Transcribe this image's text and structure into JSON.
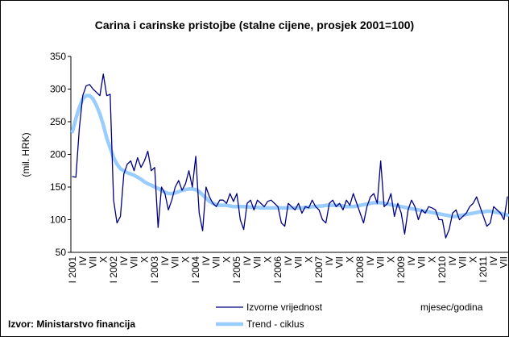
{
  "chart_data": {
    "type": "line",
    "title": "Carina i carinske pristojbe (stalne cijene, prosjek 2001=100)",
    "ylabel": "(mil. HRK)",
    "xlabel": "mjesec/godina",
    "source": "Izvor: Ministarstvo financija",
    "categories": [
      "I 2001",
      null,
      null,
      "IV",
      null,
      null,
      "VII",
      null,
      null,
      "X",
      null,
      null,
      "I 2002",
      null,
      null,
      "IV",
      null,
      null,
      "VII",
      null,
      null,
      "X",
      null,
      null,
      "I 2003",
      null,
      null,
      "IV",
      null,
      null,
      "VII",
      null,
      null,
      "X",
      null,
      null,
      "I 2004",
      null,
      null,
      "IV",
      null,
      null,
      "VII",
      null,
      null,
      "X",
      null,
      null,
      "I 2005",
      null,
      null,
      "IV",
      null,
      null,
      "VII",
      null,
      null,
      "X",
      null,
      null,
      "I 2006",
      null,
      null,
      "IV",
      null,
      null,
      "VII",
      null,
      null,
      "X",
      null,
      null,
      "I 2007",
      null,
      null,
      "IV",
      null,
      null,
      "VII",
      null,
      null,
      "X",
      null,
      null,
      "I 2008",
      null,
      null,
      "IV",
      null,
      null,
      "VII",
      null,
      null,
      "X",
      null,
      null,
      "I 2009",
      null,
      null,
      "IV",
      null,
      null,
      "VII",
      null,
      null,
      "X",
      null,
      null,
      "I 2010",
      null,
      null,
      "IV",
      null,
      null,
      "VII",
      null,
      null,
      "X",
      null,
      null,
      "I 2011",
      null,
      null,
      "IV",
      null,
      null,
      "VII",
      null
    ],
    "series": [
      {
        "name": "Izvorne vrijednost",
        "color": "#000080",
        "width": 1.3,
        "values": [
          166,
          165,
          240,
          290,
          305,
          307,
          300,
          295,
          290,
          323,
          290,
          292,
          130,
          95,
          105,
          170,
          185,
          190,
          175,
          195,
          180,
          190,
          205,
          175,
          180,
          88,
          150,
          140,
          115,
          130,
          150,
          160,
          145,
          155,
          175,
          150,
          197,
          110,
          83,
          150,
          135,
          125,
          120,
          130,
          130,
          125,
          140,
          128,
          140,
          100,
          85,
          125,
          130,
          115,
          130,
          125,
          120,
          128,
          130,
          125,
          120,
          95,
          90,
          125,
          120,
          115,
          125,
          110,
          120,
          118,
          130,
          120,
          115,
          100,
          95,
          125,
          130,
          120,
          125,
          115,
          130,
          122,
          140,
          125,
          110,
          95,
          120,
          135,
          140,
          125,
          190,
          120,
          125,
          140,
          105,
          125,
          110,
          78,
          115,
          130,
          120,
          100,
          115,
          110,
          120,
          118,
          115,
          100,
          100,
          72,
          85,
          110,
          115,
          100,
          105,
          110,
          120,
          125,
          135,
          120,
          105,
          90,
          95,
          120,
          115,
          110,
          100,
          135
        ]
      },
      {
        "name": "Trend - ciklus",
        "color": "#99ccff",
        "width": 4.5,
        "values": [
          235,
          255,
          272,
          285,
          290,
          290,
          285,
          275,
          262,
          245,
          225,
          210,
          195,
          185,
          178,
          175,
          172,
          170,
          168,
          165,
          162,
          158,
          155,
          153,
          150,
          148,
          145,
          142,
          140,
          140,
          141,
          143,
          145,
          146,
          147,
          147,
          146,
          143,
          138,
          133,
          128,
          125,
          123,
          122,
          122,
          122,
          121,
          120,
          120,
          120,
          120,
          120,
          119,
          119,
          119,
          118,
          118,
          118,
          118,
          118,
          118,
          118,
          118,
          118,
          118,
          118,
          118,
          118,
          119,
          119,
          120,
          120,
          121,
          121,
          122,
          122,
          122,
          122,
          122,
          121,
          120,
          120,
          120,
          121,
          122,
          123,
          124,
          125,
          126,
          126,
          126,
          125,
          124,
          123,
          122,
          121,
          120,
          119,
          118,
          117,
          116,
          115,
          114,
          113,
          112,
          111,
          110,
          109,
          108,
          107,
          106,
          105,
          105,
          106,
          107,
          108,
          109,
          110,
          111,
          112,
          112,
          113,
          113,
          112,
          111,
          110,
          108,
          107
        ]
      }
    ],
    "ylim": [
      50,
      350
    ],
    "yticks": [
      50,
      100,
      150,
      200,
      250,
      300,
      350
    ],
    "grid": false
  }
}
